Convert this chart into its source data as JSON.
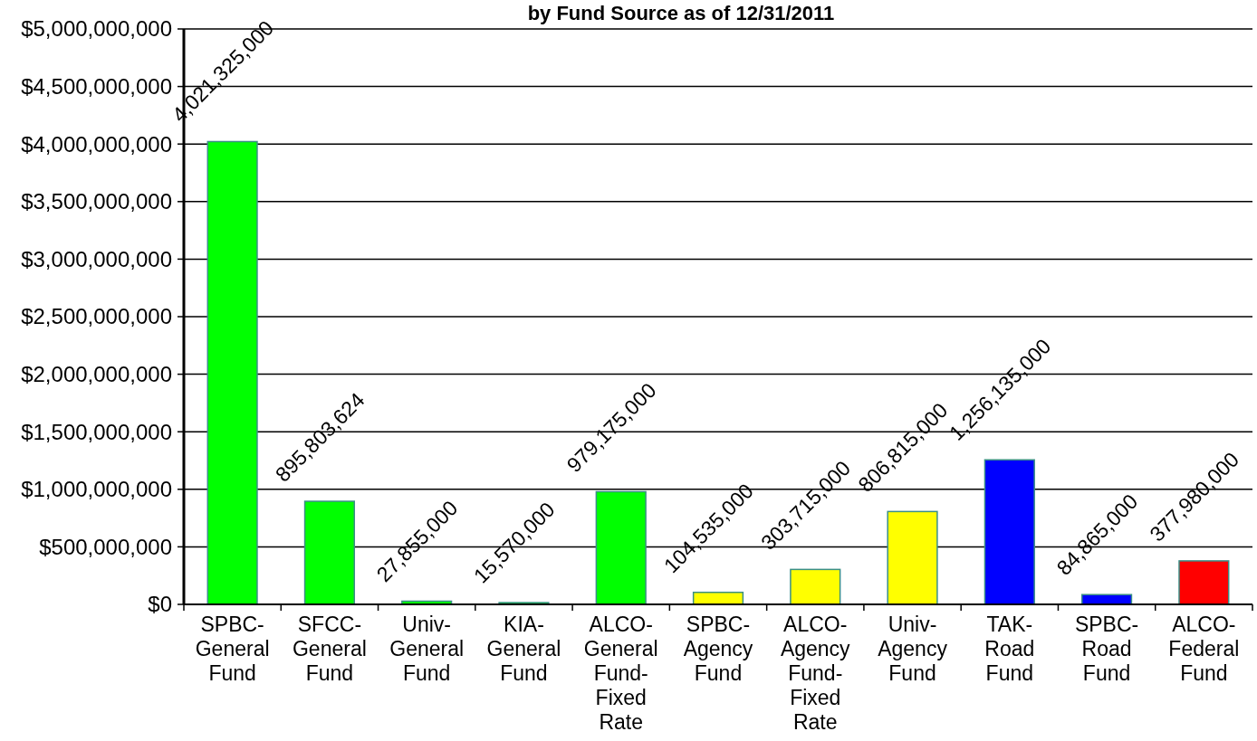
{
  "chart_data": {
    "type": "bar",
    "title": "by Fund Source as of 12/31/2011",
    "categories": [
      "SPBC-General Fund",
      "SFCC-General Fund",
      "Univ-General Fund",
      "KIA-General Fund",
      "ALCO-General Fund-Fixed Rate",
      "SPBC-Agency Fund",
      "ALCO-Agency Fund-Fixed Rate",
      "Univ-Agency Fund",
      "TAK-Road Fund",
      "SPBC-Road Fund",
      "ALCO-Federal Fund"
    ],
    "values": [
      4021325000,
      895803624,
      27855000,
      15570000,
      979175000,
      104535000,
      303715000,
      806815000,
      1256135000,
      84865000,
      377980000
    ],
    "value_labels": [
      "4,021,325,000",
      "895,803,624",
      "27,855,000",
      "15,570,000",
      "979,175,000",
      "104,535,000",
      "303,715,000",
      "806,815,000",
      "1,256,135,000",
      "84,865,000",
      "377,980,000"
    ],
    "colors": [
      "#00ff00",
      "#00ff00",
      "#00ff00",
      "#00ff00",
      "#00ff00",
      "#ffff00",
      "#ffff00",
      "#ffff00",
      "#0000ff",
      "#0000ff",
      "#ff0000"
    ],
    "ylim": [
      0,
      5000000000
    ],
    "yticks": [
      {
        "value": 0,
        "label": "$0"
      },
      {
        "value": 500000000,
        "label": "$500,000,000"
      },
      {
        "value": 1000000000,
        "label": "$1,000,000,000"
      },
      {
        "value": 1500000000,
        "label": "$1,500,000,000"
      },
      {
        "value": 2000000000,
        "label": "$2,000,000,000"
      },
      {
        "value": 2500000000,
        "label": "$2,500,000,000"
      },
      {
        "value": 3000000000,
        "label": "$3,000,000,000"
      },
      {
        "value": 3500000000,
        "label": "$3,500,000,000"
      },
      {
        "value": 4000000000,
        "label": "$4,000,000,000"
      },
      {
        "value": 4500000000,
        "label": "$4,500,000,000"
      },
      {
        "value": 5000000000,
        "label": "$5,000,000,000"
      }
    ],
    "grid": "y"
  }
}
